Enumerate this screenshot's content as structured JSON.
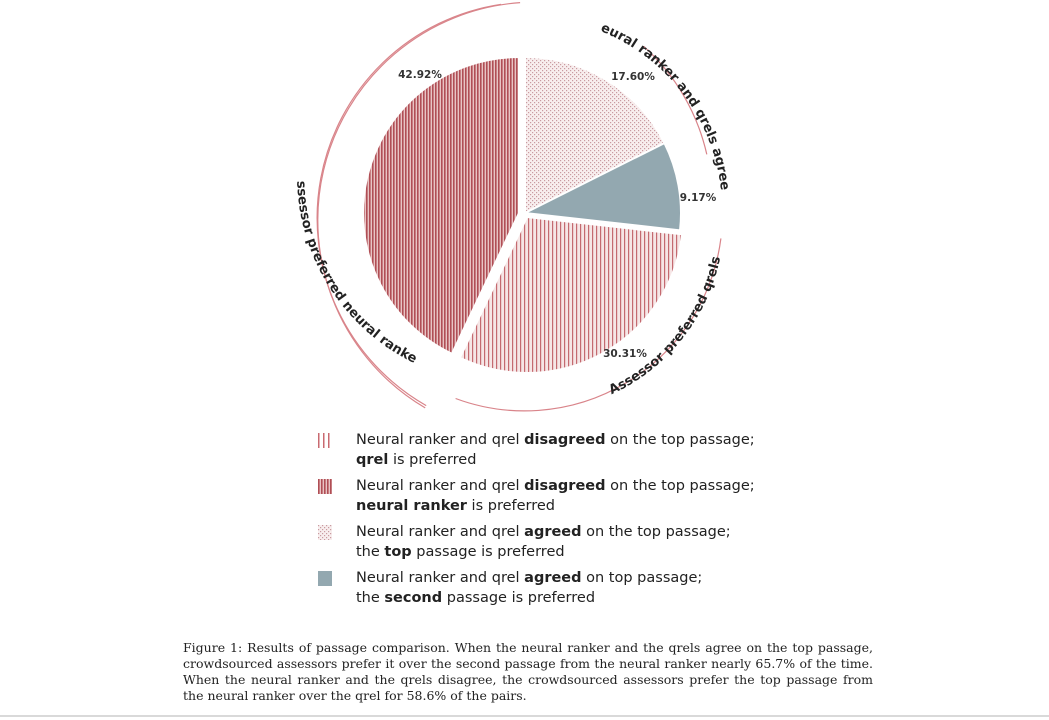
{
  "chart_data": {
    "type": "pie",
    "slices": [
      {
        "value": 17.6,
        "label": "17.60%",
        "pattern": "dots",
        "color": "#c98a8a"
      },
      {
        "value": 9.17,
        "label": "9.17%",
        "pattern": "solid",
        "color": "#93a8b0"
      },
      {
        "value": 30.31,
        "label": "30.31%",
        "pattern": "sparse-stripes",
        "color": "#c9787a"
      },
      {
        "value": 42.92,
        "label": "42.92%",
        "pattern": "dense-stripes",
        "color": "#b85a5e"
      }
    ],
    "groups": [
      {
        "label": "Neural ranker and qrels agreed"
      },
      {
        "label": "Assessor preferred qrels"
      },
      {
        "label": "Assessor preferred neural ranker"
      }
    ],
    "ring_color": "#d9848a"
  },
  "legend": [
    {
      "line1_pre": "Neural  ranker and qrel ",
      "line1_bold": "disagreed",
      "line1_post": " on the top passage;",
      "line2_pre": "",
      "line2_bold": "qrel",
      "line2_post": " is preferred"
    },
    {
      "line1_pre": "Neural  ranker and qrel  ",
      "line1_bold": "disagreed",
      "line1_post": " on the top passage;",
      "line2_pre": "",
      "line2_bold": "neural ranker",
      "line2_post": " is preferred"
    },
    {
      "line1_pre": "Neural  ranker and qrel ",
      "line1_bold": "agreed",
      "line1_post": " on the top passage;",
      "line2_pre": "the ",
      "line2_bold": "top",
      "line2_post": "  passage is preferred"
    },
    {
      "line1_pre": "Neural  ranker and qrel ",
      "line1_bold": "agreed",
      "line1_post": " on top passage;",
      "line2_pre": "the ",
      "line2_bold": "second",
      "line2_post": " passage is preferred"
    }
  ],
  "caption": "Figure 1: Results of passage comparison. When the neural ranker and the qrels agree on the top passage, crowdsourced assessors prefer it over the second passage from the neural ranker nearly 65.7% of the time. When the neural ranker and the qrels disagree, the crowdsourced assessors prefer the top passage from the neural ranker over the qrel for 58.6% of the pairs."
}
